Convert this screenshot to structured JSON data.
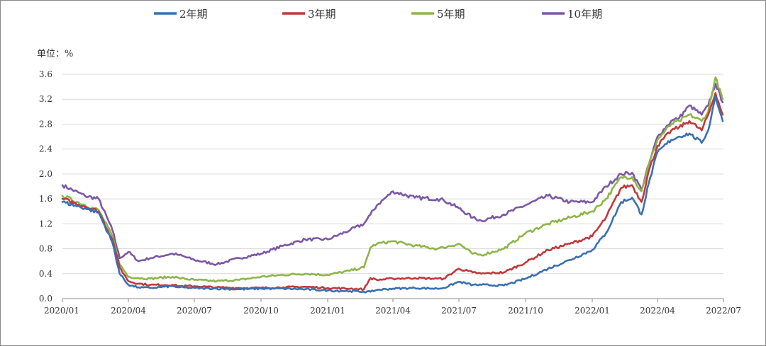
{
  "chart_data": {
    "type": "line",
    "title": "",
    "xlabel": "",
    "ylabel": "单位：%",
    "ylim": [
      0,
      3.6
    ],
    "yticks": [
      "0.0",
      "0.4",
      "0.8",
      "1.2",
      "1.6",
      "2.0",
      "2.4",
      "2.8",
      "3.2",
      "3.6"
    ],
    "xlim": [
      "2020-01-01",
      "2022-07-01"
    ],
    "xticks": [
      "2020/01",
      "2020/04",
      "2020/07",
      "2020/10",
      "2021/01",
      "2021/04",
      "2021/07",
      "2021/10",
      "2022/01",
      "2022/04",
      "2022/07"
    ],
    "grid": "horizontal",
    "legend": "top",
    "x": [
      "2020-01-01",
      "2020-02-01",
      "2020-02-20",
      "2020-03-10",
      "2020-03-20",
      "2020-04-01",
      "2020-04-15",
      "2020-05-01",
      "2020-06-01",
      "2020-06-10",
      "2020-07-01",
      "2020-08-01",
      "2020-09-01",
      "2020-10-01",
      "2020-11-01",
      "2020-12-01",
      "2021-01-01",
      "2021-02-01",
      "2021-02-20",
      "2021-03-01",
      "2021-03-10",
      "2021-04-01",
      "2021-05-01",
      "2021-06-01",
      "2021-06-10",
      "2021-07-01",
      "2021-07-20",
      "2021-08-01",
      "2021-09-01",
      "2021-10-01",
      "2021-11-01",
      "2021-12-01",
      "2022-01-01",
      "2022-01-20",
      "2022-02-10",
      "2022-02-25",
      "2022-03-10",
      "2022-03-20",
      "2022-04-01",
      "2022-04-20",
      "2022-05-01",
      "2022-05-15",
      "2022-06-01",
      "2022-06-10",
      "2022-06-20",
      "2022-06-30"
    ],
    "series": [
      {
        "name": "2年期",
        "color": "#3d6fb0",
        "values": [
          1.55,
          1.45,
          1.38,
          0.9,
          0.4,
          0.22,
          0.18,
          0.17,
          0.2,
          0.18,
          0.17,
          0.16,
          0.15,
          0.16,
          0.16,
          0.15,
          0.13,
          0.12,
          0.11,
          0.11,
          0.14,
          0.16,
          0.17,
          0.16,
          0.17,
          0.27,
          0.22,
          0.22,
          0.21,
          0.32,
          0.48,
          0.62,
          0.78,
          1.05,
          1.55,
          1.62,
          1.35,
          1.85,
          2.35,
          2.55,
          2.6,
          2.65,
          2.5,
          2.7,
          3.25,
          2.85
        ]
      },
      {
        "name": "3年期",
        "color": "#c0393c",
        "values": [
          1.6,
          1.48,
          1.4,
          0.95,
          0.5,
          0.28,
          0.24,
          0.22,
          0.22,
          0.2,
          0.2,
          0.18,
          0.17,
          0.17,
          0.18,
          0.19,
          0.17,
          0.16,
          0.15,
          0.33,
          0.3,
          0.32,
          0.33,
          0.32,
          0.32,
          0.48,
          0.42,
          0.4,
          0.42,
          0.58,
          0.78,
          0.88,
          1.0,
          1.3,
          1.78,
          1.82,
          1.55,
          2.05,
          2.45,
          2.7,
          2.75,
          2.85,
          2.7,
          2.95,
          3.3,
          2.95
        ]
      },
      {
        "name": "5年期",
        "color": "#8eb54a",
        "values": [
          1.65,
          1.5,
          1.42,
          1.0,
          0.55,
          0.35,
          0.33,
          0.32,
          0.35,
          0.33,
          0.3,
          0.28,
          0.3,
          0.35,
          0.38,
          0.4,
          0.38,
          0.45,
          0.5,
          0.82,
          0.88,
          0.92,
          0.85,
          0.8,
          0.82,
          0.88,
          0.72,
          0.7,
          0.8,
          1.05,
          1.2,
          1.3,
          1.4,
          1.6,
          1.95,
          1.95,
          1.72,
          2.15,
          2.55,
          2.8,
          2.85,
          2.95,
          2.85,
          3.0,
          3.55,
          3.2
        ]
      },
      {
        "name": "10年期",
        "color": "#7b58a6",
        "values": [
          1.82,
          1.65,
          1.6,
          1.1,
          0.65,
          0.75,
          0.6,
          0.65,
          0.72,
          0.7,
          0.62,
          0.55,
          0.65,
          0.72,
          0.85,
          0.95,
          0.95,
          1.1,
          1.2,
          1.35,
          1.5,
          1.72,
          1.62,
          1.6,
          1.58,
          1.45,
          1.3,
          1.25,
          1.35,
          1.5,
          1.65,
          1.55,
          1.55,
          1.8,
          2.0,
          2.02,
          1.75,
          2.15,
          2.6,
          2.85,
          2.9,
          3.1,
          2.95,
          3.1,
          3.45,
          3.15
        ]
      }
    ]
  }
}
